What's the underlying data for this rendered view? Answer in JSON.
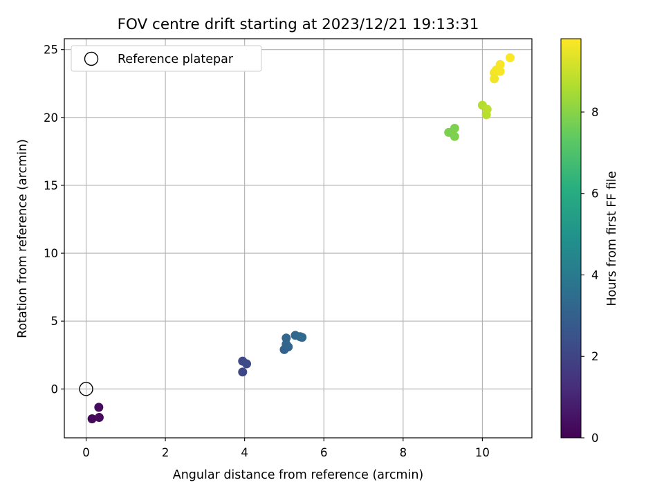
{
  "chart_data": {
    "type": "scatter",
    "title": "FOV centre drift starting at 2023/12/21 19:13:31",
    "xlabel": "Angular distance from reference (arcmin)",
    "ylabel": "Rotation from reference (arcmin)",
    "xlim": [
      -0.55,
      11.25
    ],
    "ylim": [
      -3.6,
      25.8
    ],
    "x_ticks": [
      0,
      2,
      4,
      6,
      8,
      10
    ],
    "y_ticks": [
      0,
      5,
      10,
      15,
      20,
      25
    ],
    "grid": true,
    "legend": {
      "placement": "upper-left",
      "entries": [
        "Reference platepar"
      ]
    },
    "colorbar": {
      "label": "Hours from first FF file",
      "min": 0,
      "max": 9.8,
      "ticks": [
        0,
        2,
        4,
        6,
        8
      ],
      "colormap": "viridis"
    },
    "reference_point": {
      "x": 0,
      "y": 0,
      "label": "Reference platepar"
    },
    "points": [
      {
        "x": 0.15,
        "y": -2.2,
        "hours": 0.2
      },
      {
        "x": 0.33,
        "y": -2.1,
        "hours": 0.25
      },
      {
        "x": 0.32,
        "y": -1.35,
        "hours": 0.3
      },
      {
        "x": 3.95,
        "y": 1.25,
        "hours": 2.1
      },
      {
        "x": 3.95,
        "y": 2.05,
        "hours": 2.15
      },
      {
        "x": 4.05,
        "y": 1.85,
        "hours": 2.2
      },
      {
        "x": 5.0,
        "y": 2.9,
        "hours": 3.1
      },
      {
        "x": 5.1,
        "y": 3.1,
        "hours": 3.15
      },
      {
        "x": 5.05,
        "y": 3.3,
        "hours": 3.2
      },
      {
        "x": 5.05,
        "y": 3.75,
        "hours": 3.2
      },
      {
        "x": 5.28,
        "y": 3.95,
        "hours": 3.25
      },
      {
        "x": 5.4,
        "y": 3.85,
        "hours": 3.3
      },
      {
        "x": 5.45,
        "y": 3.8,
        "hours": 3.3
      },
      {
        "x": 9.15,
        "y": 18.9,
        "hours": 7.8
      },
      {
        "x": 9.3,
        "y": 18.6,
        "hours": 7.85
      },
      {
        "x": 9.3,
        "y": 19.2,
        "hours": 7.85
      },
      {
        "x": 10.0,
        "y": 20.9,
        "hours": 8.7
      },
      {
        "x": 10.1,
        "y": 20.2,
        "hours": 8.75
      },
      {
        "x": 10.12,
        "y": 20.6,
        "hours": 8.8
      },
      {
        "x": 10.3,
        "y": 22.85,
        "hours": 9.6
      },
      {
        "x": 10.3,
        "y": 23.3,
        "hours": 9.6
      },
      {
        "x": 10.35,
        "y": 23.5,
        "hours": 9.65
      },
      {
        "x": 10.45,
        "y": 23.9,
        "hours": 9.7
      },
      {
        "x": 10.45,
        "y": 23.4,
        "hours": 9.7
      },
      {
        "x": 10.7,
        "y": 24.4,
        "hours": 9.75
      }
    ]
  }
}
